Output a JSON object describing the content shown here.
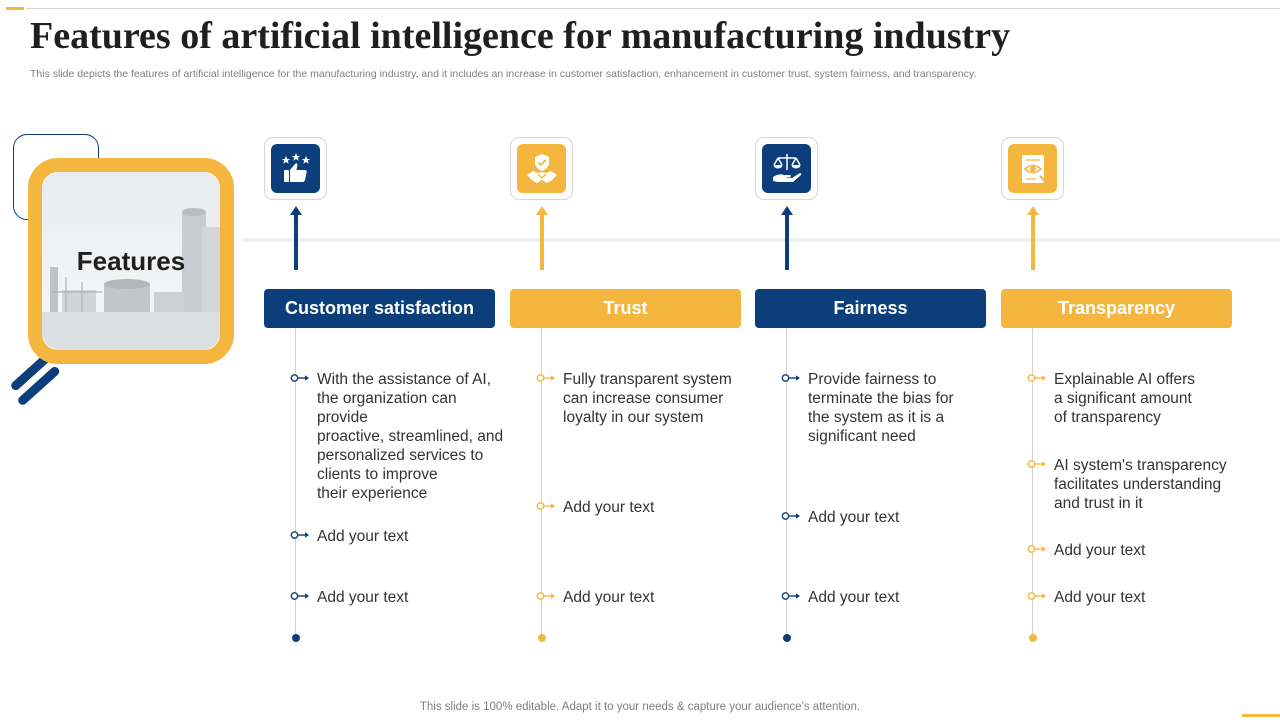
{
  "title": "Features of artificial intelligence for manufacturing industry",
  "subtitle": "This slide depicts the features of artificial intelligence for the manufacturing industry, and it includes an increase in customer satisfaction, enhancement in customer trust, system fairness, and transparency.",
  "feature_label": "Features",
  "colors": {
    "navy": "#0b3e7a",
    "gold": "#f4b63f",
    "text": "#333333",
    "muted": "#7f7f7f"
  },
  "columns": [
    {
      "heading": "Customer satisfaction",
      "icon": "thumbs-up-stars-icon",
      "color": "navy",
      "items": [
        "With the assistance of AI,\nthe organization can provide\nproactive, streamlined, and\npersonalized services to\nclients to improve\ntheir experience",
        "Add your text",
        "Add your text"
      ]
    },
    {
      "heading": "Trust",
      "icon": "handshake-shield-icon",
      "color": "gold",
      "items": [
        "Fully transparent system\ncan increase consumer\nloyalty  in our system",
        "Add your text",
        "Add your text"
      ]
    },
    {
      "heading": "Fairness",
      "icon": "scale-hand-icon",
      "color": "navy",
      "items": [
        "Provide fairness to\nterminate the bias for\nthe system as it is a\nsignificant need",
        "Add your text",
        "Add your text"
      ]
    },
    {
      "heading": "Transparency",
      "icon": "document-eye-icon",
      "color": "gold",
      "items": [
        "Explainable AI offers\na significant amount\nof transparency",
        "AI system's transparency\nfacilitates understanding\nand trust  in it",
        "Add your text",
        "Add your text"
      ]
    }
  ],
  "footer": "This slide is 100% editable. Adapt it to your needs & capture your audience’s attention."
}
